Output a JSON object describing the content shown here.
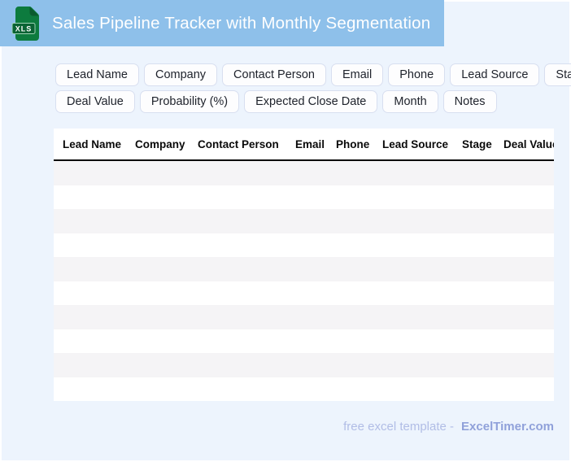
{
  "header": {
    "title": "Sales Pipeline Tracker with Monthly Segmentation",
    "file_icon_label": "XLS"
  },
  "chips": {
    "rows": [
      [
        "Lead Name",
        "Company",
        "Contact Person",
        "Email",
        "Phone",
        "Lead Source",
        "Stage"
      ],
      [
        "Deal Value",
        "Probability (%)",
        "Expected Close Date",
        "Month",
        "Notes"
      ]
    ]
  },
  "table": {
    "columns": [
      "Lead Name",
      "Company",
      "Contact Person",
      "Email",
      "Phone",
      "Lead Source",
      "Stage",
      "Deal Value"
    ],
    "empty_row_count": 10
  },
  "footer": {
    "text": "free excel template -",
    "brand": "ExcelTimer.com"
  },
  "colors": {
    "banner_blue": "#8ec0ea",
    "page_background": "#edf4fd",
    "icon_green": "#0d7b3e",
    "icon_band_green": "#0b6334",
    "row_stripe": "#f5f4f6",
    "chip_border": "#d8dff0",
    "footer_text": "#b1bde6",
    "footer_brand": "#90a1da"
  }
}
